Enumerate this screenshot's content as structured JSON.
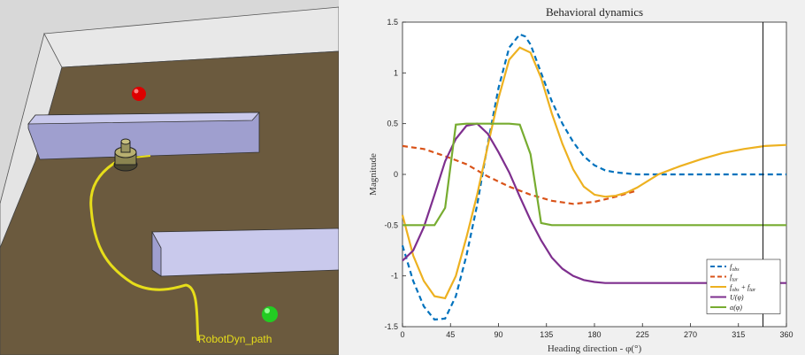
{
  "simulation": {
    "path_label": "RobotDyn_path",
    "colors": {
      "floor": "#6b5a3e",
      "wall_top": "#c9c9ec",
      "wall_side": "#9f9fcf",
      "outer_wall": "#dcdcdc",
      "target": "#22cc22",
      "obstacle_marker": "#dd0000",
      "path": "#e6dd1a",
      "background": "#9a9a9a"
    }
  },
  "chart_data": {
    "type": "line",
    "title": "Behavioral dynamics",
    "xlabel": "Heading direction - φ(°)",
    "ylabel": "Magnitude",
    "xlim": [
      0,
      360
    ],
    "ylim": [
      -1.5,
      1.5
    ],
    "xticks": [
      0,
      45,
      90,
      135,
      180,
      225,
      270,
      315,
      360
    ],
    "yticks": [
      1.5,
      1,
      0.5,
      0,
      -0.5,
      -1,
      -1.5
    ],
    "grid": false,
    "legend_position": "bottom-right",
    "vertical_marker_x": 338,
    "series": [
      {
        "name": "f_obs",
        "color": "#0072bd",
        "dash": "dashed",
        "x": [
          0,
          10,
          20,
          30,
          40,
          50,
          60,
          70,
          80,
          90,
          100,
          110,
          115,
          120,
          130,
          140,
          150,
          160,
          170,
          180,
          190,
          200,
          210,
          220,
          240,
          260,
          280,
          300,
          320,
          340,
          360
        ],
        "y": [
          -0.7,
          -1.05,
          -1.3,
          -1.43,
          -1.42,
          -1.2,
          -0.8,
          -0.3,
          0.3,
          0.85,
          1.25,
          1.38,
          1.36,
          1.28,
          1.0,
          0.72,
          0.5,
          0.32,
          0.18,
          0.09,
          0.04,
          0.02,
          0.01,
          0,
          0,
          0,
          0,
          0,
          0,
          0,
          0
        ]
      },
      {
        "name": "f_tar",
        "color": "#d95319",
        "dash": "dashed",
        "x": [
          0,
          20,
          40,
          60,
          80,
          100,
          120,
          140,
          160,
          180,
          200,
          220
        ],
        "y": [
          0.28,
          0.25,
          0.18,
          0.1,
          -0.02,
          -0.12,
          -0.2,
          -0.26,
          -0.29,
          -0.27,
          -0.22,
          -0.16
        ]
      },
      {
        "name": "f_obs + f_tar",
        "color": "#edb120",
        "dash": "solid",
        "x": [
          0,
          10,
          20,
          30,
          40,
          50,
          60,
          70,
          80,
          90,
          100,
          110,
          120,
          130,
          140,
          150,
          160,
          170,
          180,
          190,
          200,
          210,
          220,
          240,
          260,
          280,
          300,
          320,
          340,
          360
        ],
        "y": [
          -0.4,
          -0.8,
          -1.05,
          -1.2,
          -1.22,
          -1.0,
          -0.62,
          -0.2,
          0.28,
          0.75,
          1.13,
          1.25,
          1.2,
          0.95,
          0.6,
          0.3,
          0.05,
          -0.12,
          -0.2,
          -0.22,
          -0.21,
          -0.18,
          -0.13,
          0,
          0.08,
          0.15,
          0.21,
          0.25,
          0.28,
          0.29
        ]
      },
      {
        "name": "U(φ)",
        "color": "#7e2f8e",
        "dash": "solid",
        "x": [
          0,
          10,
          20,
          30,
          40,
          50,
          60,
          70,
          80,
          90,
          100,
          110,
          120,
          130,
          140,
          150,
          160,
          170,
          180,
          190,
          200,
          220,
          240,
          260,
          280,
          300,
          320,
          340,
          360
        ],
        "y": [
          -0.85,
          -0.75,
          -0.52,
          -0.2,
          0.13,
          0.35,
          0.48,
          0.5,
          0.4,
          0.22,
          0.02,
          -0.22,
          -0.45,
          -0.65,
          -0.82,
          -0.93,
          -1.0,
          -1.04,
          -1.06,
          -1.07,
          -1.07,
          -1.07,
          -1.07,
          -1.07,
          -1.07,
          -1.07,
          -1.07,
          -1.07,
          -1.07
        ]
      },
      {
        "name": "α(φ)",
        "color": "#77ac30",
        "dash": "solid",
        "x": [
          0,
          30,
          40,
          50,
          60,
          70,
          80,
          90,
          100,
          110,
          120,
          130,
          140,
          180,
          220,
          260,
          300,
          340,
          360
        ],
        "y": [
          -0.5,
          -0.5,
          -0.33,
          0.49,
          0.5,
          0.5,
          0.5,
          0.5,
          0.5,
          0.49,
          0.2,
          -0.48,
          -0.5,
          -0.5,
          -0.5,
          -0.5,
          -0.5,
          -0.5,
          -0.5
        ]
      }
    ]
  }
}
